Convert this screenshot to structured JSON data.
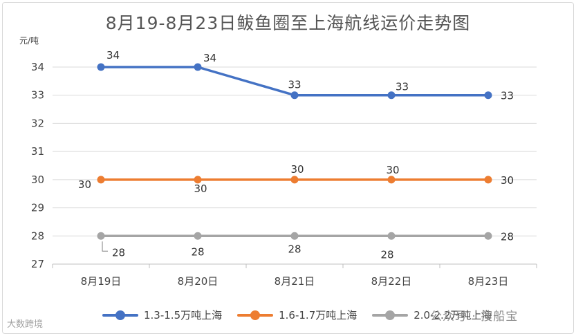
{
  "title": "8月19-8月23日鲅鱼圈至上海航线运价走势图",
  "watermark_right": "公众号 · 搜船宝",
  "watermark_left": "大数跨境",
  "chart_data": {
    "type": "line",
    "title": "8月19-8月23日鲅鱼圈至上海航线运价走势图",
    "ylabel": "元/吨",
    "xlabel": "",
    "categories": [
      "8月19日",
      "8月20日",
      "8月21日",
      "8月22日",
      "8月23日"
    ],
    "ylim": [
      27,
      34
    ],
    "yticks": [
      "27",
      "28",
      "29",
      "30",
      "31",
      "32",
      "33",
      "34"
    ],
    "grid": true,
    "legend_position": "bottom",
    "series": [
      {
        "name": "1.3-1.5万吨上海",
        "color": "#4472C4",
        "values": [
          34,
          34,
          33,
          33,
          33
        ]
      },
      {
        "name": "1.6-1.7万吨上海",
        "color": "#ED7D31",
        "values": [
          30,
          30,
          30,
          30,
          30
        ]
      },
      {
        "name": "2.0-2.2万吨上海",
        "color": "#A5A5A5",
        "values": [
          28,
          28,
          28,
          28,
          28
        ]
      }
    ]
  }
}
